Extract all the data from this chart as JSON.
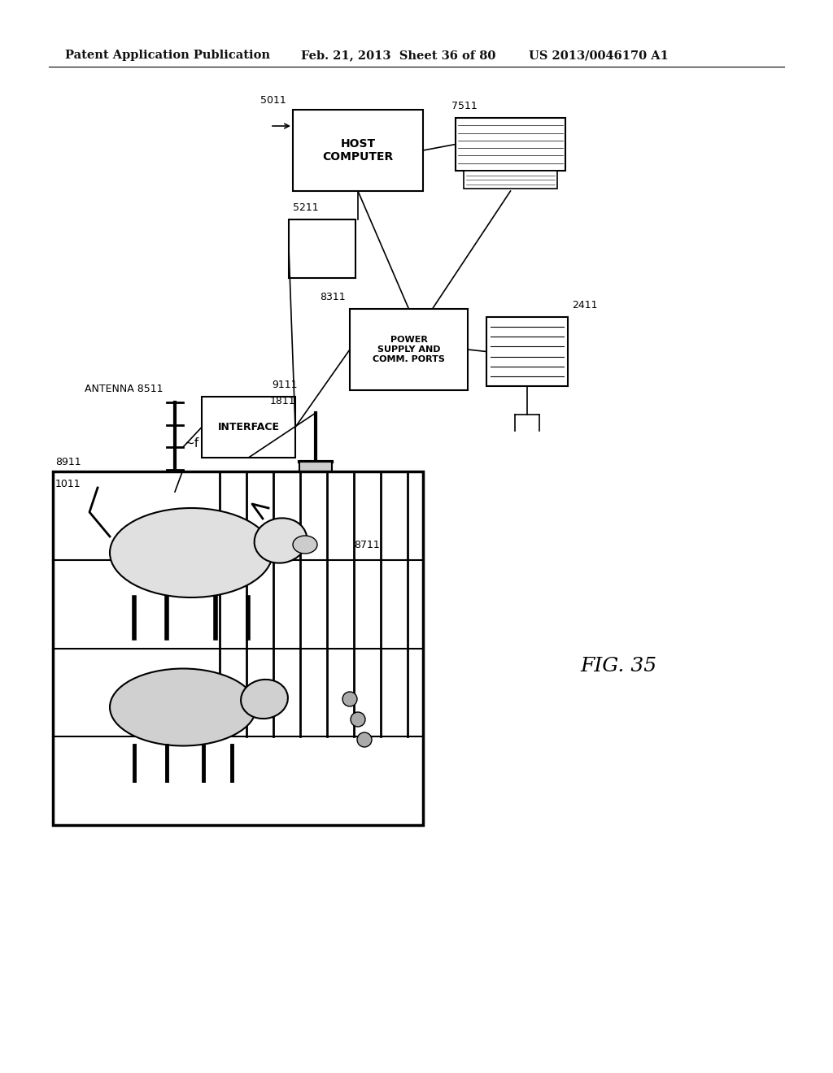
{
  "background_color": "#ffffff",
  "header_left": "Patent Application Publication",
  "header_mid": "Feb. 21, 2013  Sheet 36 of 80",
  "header_right": "US 2013/0046170 A1",
  "figure_label": "FIG. 35",
  "title_fontsize": 11,
  "label_fontsize": 9,
  "fig_label_fontsize": 18
}
